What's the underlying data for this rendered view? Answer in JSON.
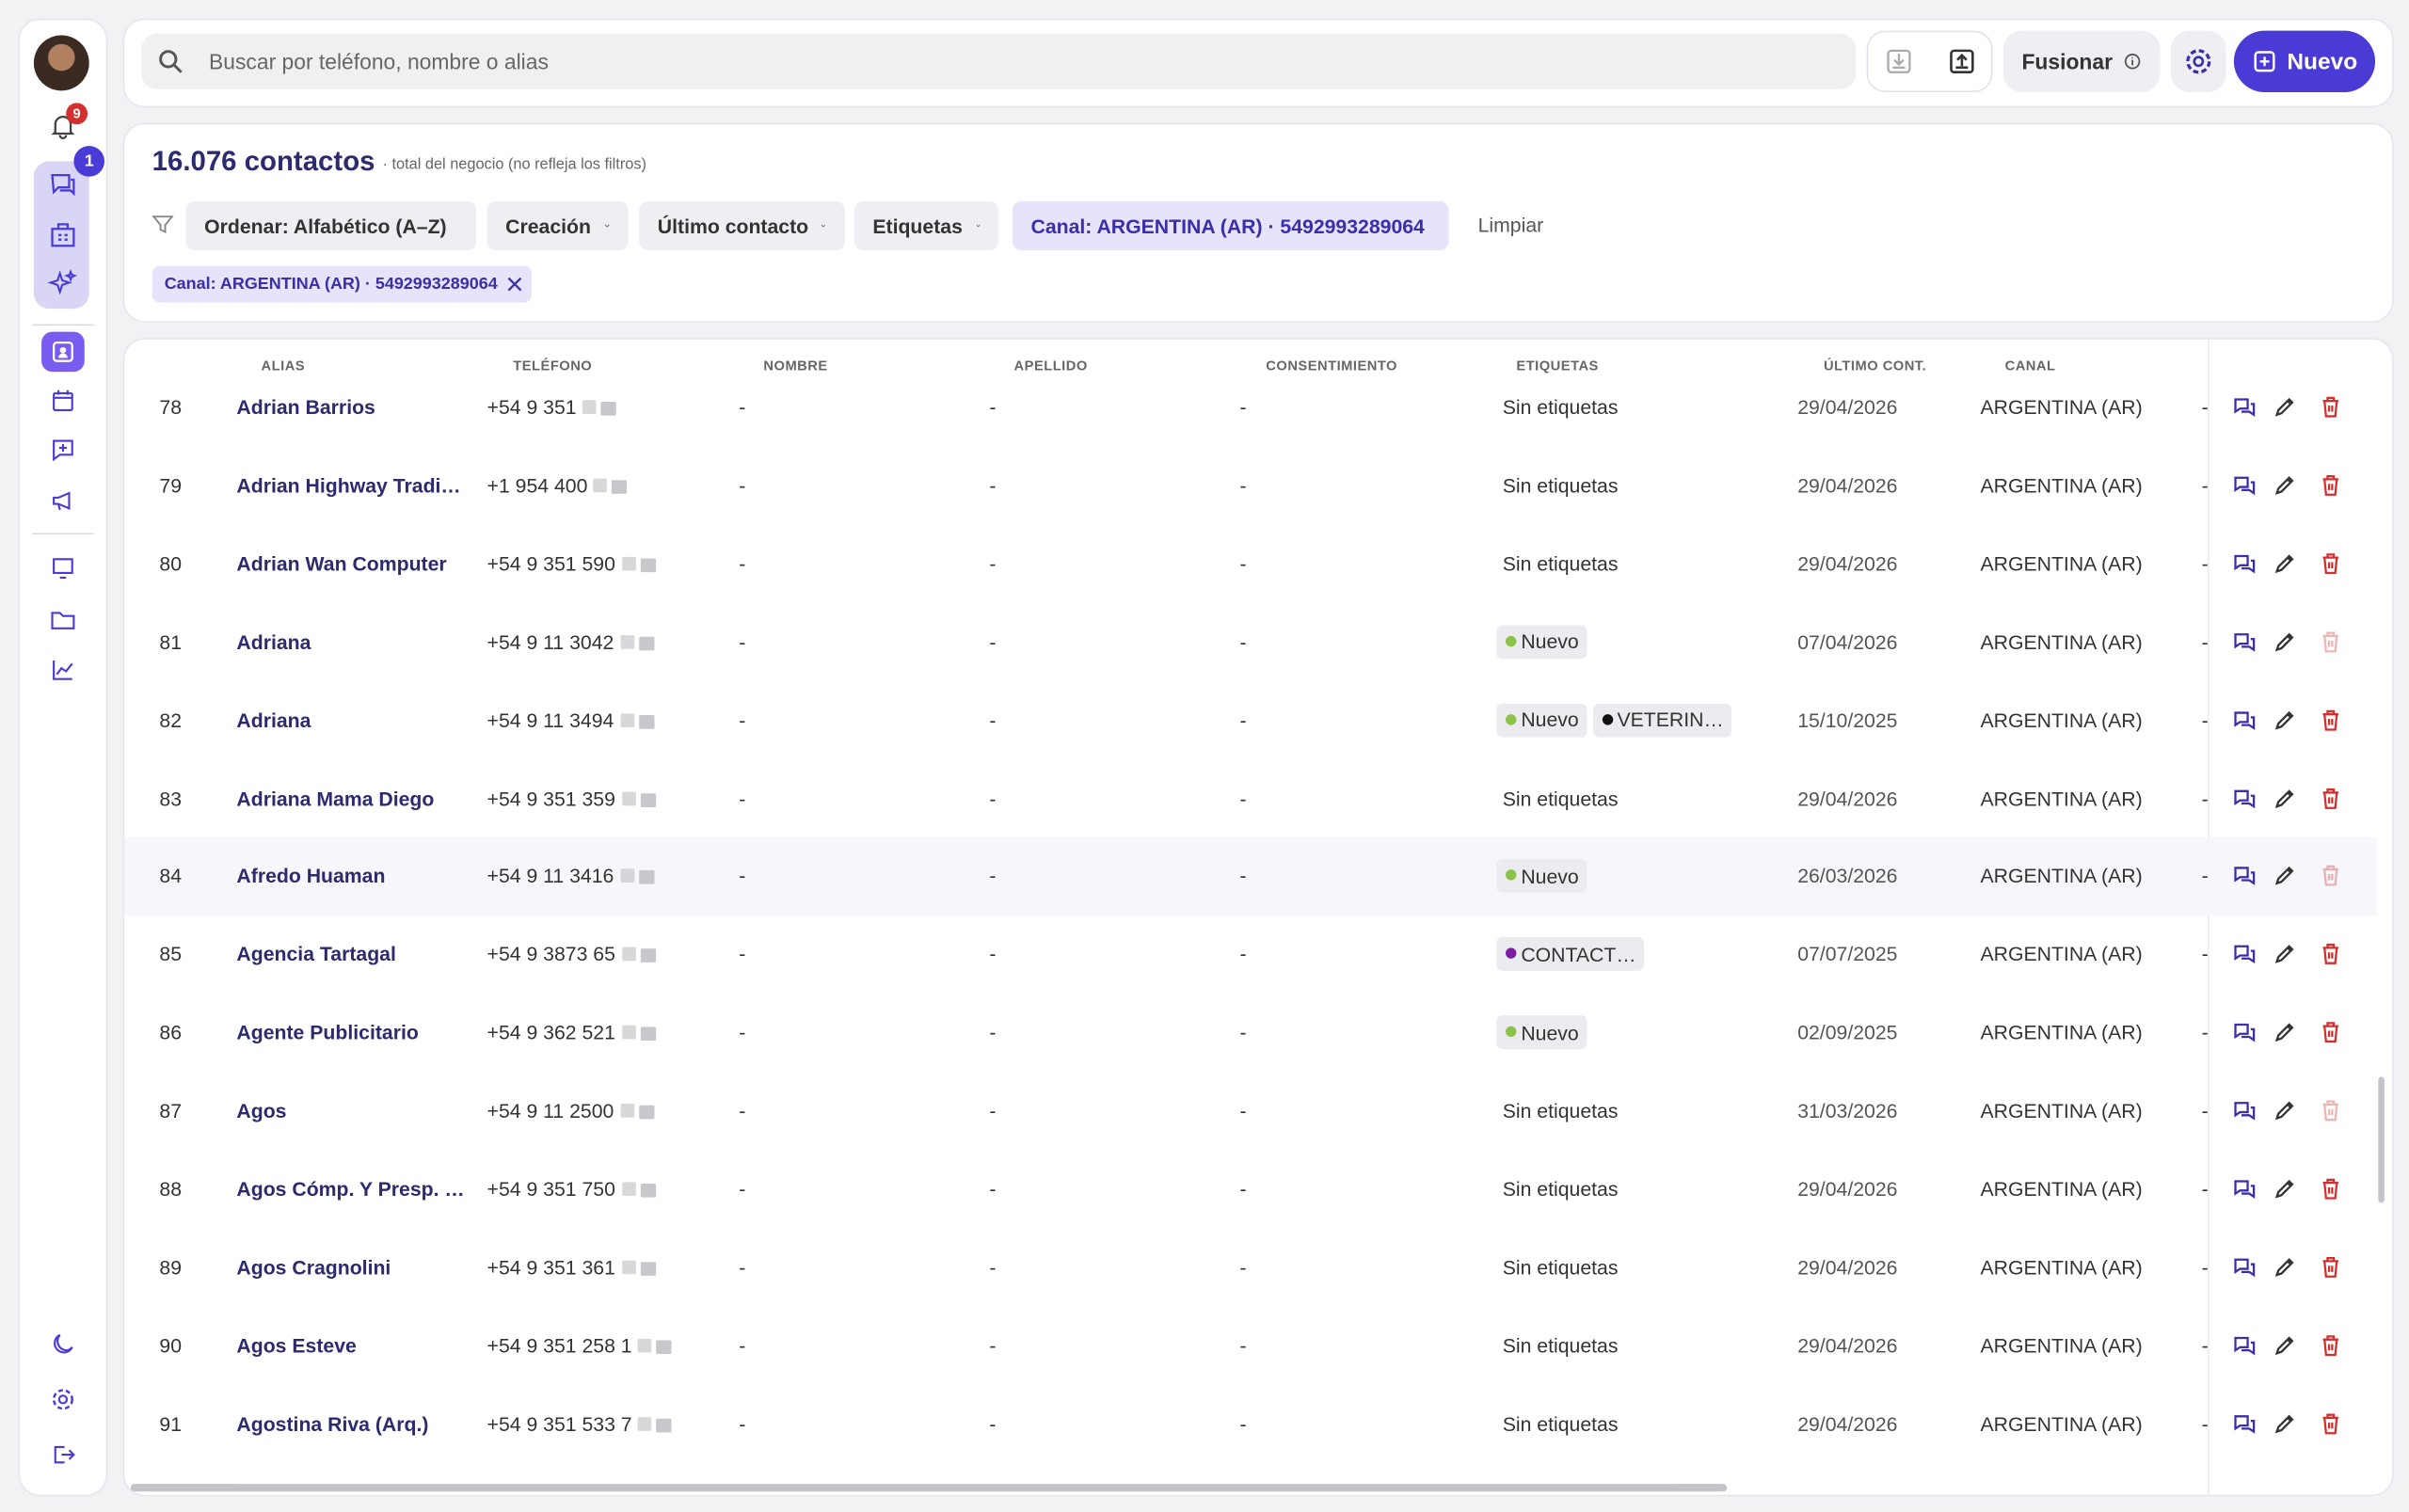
{
  "sidebar": {
    "notifications_badge": "9",
    "chats_badge": "1"
  },
  "header": {
    "search_placeholder": "Buscar por teléfono, nombre o alias",
    "merge_button": "Fusionar",
    "new_button": "Nuevo"
  },
  "summary": {
    "title": "16.076 contactos",
    "subtitle": "· total del negocio (no refleja los filtros)"
  },
  "filters": {
    "items": [
      "Ordenar: Alfabético (A–Z)",
      "Creación",
      "Último contacto",
      "Etiquetas",
      "Canal: ARGENTINA (AR) · 5492993289064"
    ],
    "clear": "Limpiar",
    "active_chip": "Canal: ARGENTINA (AR) · 5492993289064"
  },
  "table": {
    "columns": [
      "ALIAS",
      "TELÉFONO",
      "NOMBRE",
      "APELLIDO",
      "CONSENTIMIENTO",
      "ETIQUETAS",
      "ÚLTIMO CONT.",
      "CANAL"
    ],
    "rows": [
      [
        78,
        "Adrian Barrios",
        "+54 9 351",
        "-",
        "-",
        "-",
        "Sin etiquetas",
        "29/04/2026",
        "ARGENTINA (AR)",
        "-"
      ],
      [
        79,
        "Adrian Highway Tradi…",
        "+1 954 400",
        "-",
        "-",
        "-",
        "Sin etiquetas",
        "29/04/2026",
        "ARGENTINA (AR)",
        "-"
      ],
      [
        80,
        "Adrian Wan Computer",
        "+54 9 351 590",
        "-",
        "-",
        "-",
        "Sin etiquetas",
        "29/04/2026",
        "ARGENTINA (AR)",
        "-"
      ],
      [
        81,
        "Adriana",
        "+54 9 11 3042",
        "-",
        "-",
        "-",
        [
          {
            "label": "Nuevo",
            "color": "#8bc34a"
          }
        ],
        "07/04/2026",
        "ARGENTINA (AR)",
        "-"
      ],
      [
        82,
        "Adriana",
        "+54 9 11 3494",
        "-",
        "-",
        "-",
        [
          {
            "label": "Nuevo",
            "color": "#8bc34a"
          },
          {
            "label": "VETERIN…",
            "color": "#111111"
          }
        ],
        "15/10/2025",
        "ARGENTINA (AR)",
        "-"
      ],
      [
        83,
        "Adriana Mama Diego",
        "+54 9 351 359",
        "-",
        "-",
        "-",
        "Sin etiquetas",
        "29/04/2026",
        "ARGENTINA (AR)",
        "-"
      ],
      [
        84,
        "Afredo Huaman",
        "+54 9 11 3416",
        "-",
        "-",
        "-",
        [
          {
            "label": "Nuevo",
            "color": "#8bc34a"
          }
        ],
        "26/03/2026",
        "ARGENTINA (AR)",
        "-"
      ],
      [
        85,
        "Agencia Tartagal",
        "+54 9 3873 65",
        "-",
        "-",
        "-",
        [
          {
            "label": "CONTACT…",
            "color": "#7b1fa2"
          }
        ],
        "07/07/2025",
        "ARGENTINA (AR)",
        "-"
      ],
      [
        86,
        "Agente Publicitario",
        "+54 9 362 521",
        "-",
        "-",
        "-",
        [
          {
            "label": "Nuevo",
            "color": "#8bc34a"
          }
        ],
        "02/09/2025",
        "ARGENTINA (AR)",
        "-"
      ],
      [
        87,
        "Agos",
        "+54 9 11 2500",
        "-",
        "-",
        "-",
        "Sin etiquetas",
        "31/03/2026",
        "ARGENTINA (AR)",
        "-"
      ],
      [
        88,
        "Agos Cómp. Y Presp. …",
        "+54 9 351 750",
        "-",
        "-",
        "-",
        "Sin etiquetas",
        "29/04/2026",
        "ARGENTINA (AR)",
        "-"
      ],
      [
        89,
        "Agos Cragnolini",
        "+54 9 351 361",
        "-",
        "-",
        "-",
        "Sin etiquetas",
        "29/04/2026",
        "ARGENTINA (AR)",
        "-"
      ],
      [
        90,
        "Agos Esteve",
        "+54 9 351 258 1",
        "-",
        "-",
        "-",
        "Sin etiquetas",
        "29/04/2026",
        "ARGENTINA (AR)",
        "-"
      ],
      [
        91,
        "Agostina Riva (Arq.)",
        "+54 9 351 533 7",
        "-",
        "-",
        "-",
        "Sin etiquetas",
        "29/04/2026",
        "ARGENTINA (AR)",
        "-"
      ]
    ]
  }
}
